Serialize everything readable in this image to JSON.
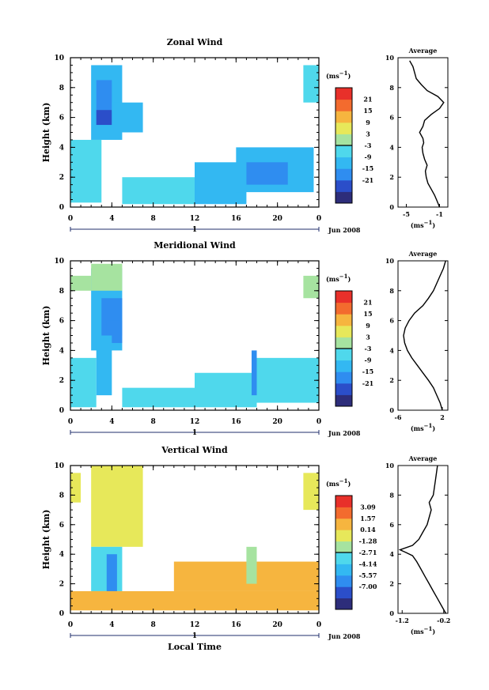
{
  "chart_data": [
    {
      "type": "heatmap",
      "title": "Zonal Wind",
      "ylabel": "Height (km)",
      "y_ticks": [
        "0",
        "2",
        "4",
        "6",
        "8",
        "10"
      ],
      "x_ticks": [
        "0",
        "4",
        "8",
        "12",
        "16",
        "20",
        "0"
      ],
      "xlim": [
        0,
        24
      ],
      "ylim": [
        0,
        10
      ],
      "day_label": "1",
      "date_label": "Jun 2008",
      "colorbar": {
        "unit": "(ms",
        "unit_exp": "−1",
        "unit_close": ")",
        "labels": [
          "21",
          "15",
          "9",
          "3",
          "-3",
          "-9",
          "-15",
          "-21"
        ],
        "range": [
          -24,
          24
        ]
      },
      "cells": [
        {
          "x": [
            2,
            5
          ],
          "y": [
            4.5,
            9.5
          ],
          "v": -7
        },
        {
          "x": [
            2.5,
            4
          ],
          "y": [
            6.5,
            8.5
          ],
          "v": -11
        },
        {
          "x": [
            2.5,
            4
          ],
          "y": [
            5.5,
            6.5
          ],
          "v": -16
        },
        {
          "x": [
            4,
            7
          ],
          "y": [
            5.0,
            7.0
          ],
          "v": -5
        },
        {
          "x": [
            0,
            3
          ],
          "y": [
            0.3,
            4.5
          ],
          "v": -2
        },
        {
          "x": [
            5,
            12
          ],
          "y": [
            0.2,
            2.0
          ],
          "v": -4
        },
        {
          "x": [
            12,
            17
          ],
          "y": [
            0.2,
            3.0
          ],
          "v": -7
        },
        {
          "x": [
            16,
            23.5
          ],
          "y": [
            1.0,
            4.0
          ],
          "v": -5
        },
        {
          "x": [
            17,
            21
          ],
          "y": [
            1.5,
            3.0
          ],
          "v": -10
        },
        {
          "x": [
            22.5,
            24
          ],
          "y": [
            7.0,
            9.5
          ],
          "v": -4
        }
      ],
      "avg_profile": {
        "title": "Average",
        "xlabel": "(ms",
        "xlabel_exp": "−1",
        "xlabel_close": ")",
        "x_ticks": [
          "-5",
          "-1"
        ],
        "xlim": [
          -6,
          0
        ],
        "ylim": [
          0,
          10
        ],
        "y_ticks": [
          "0",
          "2",
          "4",
          "6",
          "8",
          "10"
        ],
        "x": [
          -1.0,
          -1.3,
          -1.6,
          -2.0,
          -2.4,
          -2.6,
          -2.7,
          -2.5,
          -2.8,
          -3.0,
          -3.1,
          -2.9,
          -3.0,
          -3.4,
          -3.0,
          -2.8,
          -2.0,
          -1.0,
          -0.5,
          -1.2,
          -2.5,
          -3.2,
          -3.8,
          -4.0,
          -4.2,
          -4.6
        ],
        "y": [
          0.0,
          0.4,
          0.8,
          1.2,
          1.6,
          2.0,
          2.4,
          2.8,
          3.2,
          3.6,
          4.0,
          4.3,
          4.6,
          5.0,
          5.4,
          5.8,
          6.2,
          6.6,
          7.0,
          7.4,
          7.8,
          8.2,
          8.6,
          9.0,
          9.4,
          9.8
        ]
      }
    },
    {
      "type": "heatmap",
      "title": "Meridional Wind",
      "ylabel": "Height (km)",
      "y_ticks": [
        "0",
        "2",
        "4",
        "6",
        "8",
        "10"
      ],
      "x_ticks": [
        "0",
        "4",
        "8",
        "12",
        "16",
        "20",
        "0"
      ],
      "xlim": [
        0,
        24
      ],
      "ylim": [
        0,
        10
      ],
      "day_label": "1",
      "date_label": "Jun 2008",
      "colorbar": {
        "unit": "(ms",
        "unit_exp": "−1",
        "unit_close": ")",
        "labels": [
          "21",
          "15",
          "9",
          "3",
          "-3",
          "-9",
          "-15",
          "-21"
        ],
        "range": [
          -24,
          24
        ]
      },
      "cells": [
        {
          "x": [
            2,
            5
          ],
          "y": [
            4.0,
            9.5
          ],
          "v": -6
        },
        {
          "x": [
            3,
            5
          ],
          "y": [
            5.0,
            7.5
          ],
          "v": -10
        },
        {
          "x": [
            3.5,
            5
          ],
          "y": [
            4.5,
            6.0
          ],
          "v": -14
        },
        {
          "x": [
            2.5,
            4
          ],
          "y": [
            1.0,
            5.0
          ],
          "v": -9
        },
        {
          "x": [
            0,
            2.5
          ],
          "y": [
            0.2,
            3.5
          ],
          "v": -3
        },
        {
          "x": [
            0,
            2
          ],
          "y": [
            8.0,
            9.0
          ],
          "v": 0
        },
        {
          "x": [
            2,
            5
          ],
          "y": [
            8.0,
            9.8
          ],
          "v": 1
        },
        {
          "x": [
            5,
            12
          ],
          "y": [
            0.2,
            1.5
          ],
          "v": -1
        },
        {
          "x": [
            12,
            18
          ],
          "y": [
            0.2,
            2.5
          ],
          "v": -3
        },
        {
          "x": [
            17.5,
            18
          ],
          "y": [
            1.0,
            4.0
          ],
          "v": -14
        },
        {
          "x": [
            18,
            24
          ],
          "y": [
            0.5,
            3.5
          ],
          "v": -4
        },
        {
          "x": [
            22.5,
            24
          ],
          "y": [
            7.5,
            9.0
          ],
          "v": 1
        }
      ],
      "avg_profile": {
        "title": "Average",
        "xlabel": "(ms",
        "xlabel_exp": "−1",
        "xlabel_close": ")",
        "x_ticks": [
          "-6",
          "2"
        ],
        "xlim": [
          -6,
          3
        ],
        "ylim": [
          0,
          10
        ],
        "y_ticks": [
          "0",
          "2",
          "4",
          "6",
          "8",
          "10"
        ],
        "x": [
          2.0,
          1.6,
          1.0,
          0.4,
          -0.5,
          -1.5,
          -2.5,
          -3.5,
          -4.3,
          -4.8,
          -5.0,
          -4.7,
          -4.0,
          -3.0,
          -1.5,
          -0.5,
          0.4,
          1.0,
          1.6,
          2.2,
          2.6
        ],
        "y": [
          0.0,
          0.5,
          1.0,
          1.5,
          2.0,
          2.5,
          3.0,
          3.5,
          4.0,
          4.5,
          5.0,
          5.5,
          6.0,
          6.5,
          7.0,
          7.5,
          8.0,
          8.5,
          9.0,
          9.5,
          10.0
        ]
      }
    },
    {
      "type": "heatmap",
      "title": "Vertical Wind",
      "xlabel": "Local Time",
      "ylabel": "Height (km)",
      "y_ticks": [
        "0",
        "2",
        "4",
        "6",
        "8",
        "10"
      ],
      "x_ticks": [
        "0",
        "4",
        "8",
        "12",
        "16",
        "20",
        "0"
      ],
      "xlim": [
        0,
        24
      ],
      "ylim": [
        0,
        10
      ],
      "day_label": "1",
      "date_label": "Jun 2008",
      "colorbar": {
        "unit": "(ms",
        "unit_exp": "−1",
        "unit_close": ")",
        "labels": [
          "3.09",
          "1.57",
          "0.14",
          "-1.28",
          "-2.71",
          "-4.14",
          "-5.57",
          "-7.00"
        ],
        "range": [
          -8,
          4
        ]
      },
      "cells": [
        {
          "x": [
            0,
            1
          ],
          "y": [
            7.5,
            9.5
          ],
          "v": -0.3
        },
        {
          "x": [
            2,
            7
          ],
          "y": [
            4.5,
            10.0
          ],
          "v": -0.4
        },
        {
          "x": [
            2,
            5
          ],
          "y": [
            1.5,
            4.5
          ],
          "v": -3.0
        },
        {
          "x": [
            3.5,
            4.5
          ],
          "y": [
            0.3,
            4.0
          ],
          "v": -5.5
        },
        {
          "x": [
            0,
            24
          ],
          "y": [
            0.2,
            1.5
          ],
          "v": 0.8
        },
        {
          "x": [
            10,
            24
          ],
          "y": [
            1.5,
            3.5
          ],
          "v": 0.6
        },
        {
          "x": [
            17,
            18
          ],
          "y": [
            2.0,
            4.5
          ],
          "v": -2.0
        },
        {
          "x": [
            22.5,
            24
          ],
          "y": [
            7.0,
            9.5
          ],
          "v": -0.3
        }
      ],
      "avg_profile": {
        "title": "Average",
        "xlabel": "(ms",
        "xlabel_exp": "−1",
        "xlabel_close": ")",
        "x_ticks": [
          "-1.2",
          "-0.2"
        ],
        "xlim": [
          -1.3,
          -0.1
        ],
        "ylim": [
          0,
          10
        ],
        "y_ticks": [
          "0",
          "2",
          "4",
          "6",
          "8",
          "10"
        ],
        "x": [
          -0.15,
          -0.25,
          -0.35,
          -0.45,
          -0.55,
          -0.65,
          -0.75,
          -0.85,
          -0.95,
          -1.1,
          -1.25,
          -0.95,
          -0.8,
          -0.7,
          -0.6,
          -0.55,
          -0.5,
          -0.55,
          -0.45,
          -0.4,
          -0.35
        ],
        "y": [
          0.0,
          0.5,
          1.0,
          1.5,
          2.0,
          2.5,
          3.0,
          3.5,
          3.9,
          4.1,
          4.3,
          4.6,
          5.0,
          5.5,
          6.0,
          6.5,
          7.0,
          7.5,
          8.0,
          9.0,
          10.0
        ]
      }
    }
  ]
}
